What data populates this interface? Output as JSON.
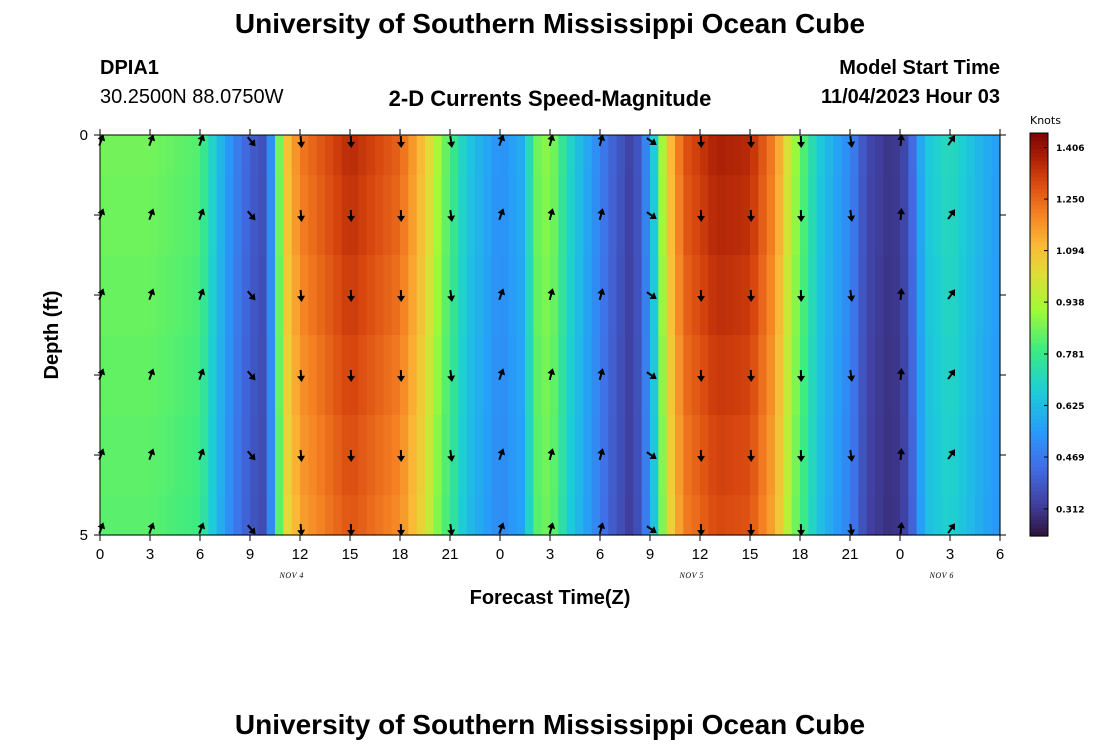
{
  "header": {
    "title": "University of Southern Mississippi Ocean Cube",
    "station_id": "DPIA1",
    "location": "30.2500N  88.0750W",
    "plot_title": "2-D Currents Speed-Magnitude",
    "model_start_label": "Model Start Time",
    "model_start_value": "11/04/2023 Hour 03",
    "bottom_title": "University of Southern Mississippi Ocean Cube"
  },
  "chart_data": {
    "type": "heatmap",
    "title": "2-D Currents Speed-Magnitude",
    "xlabel": "Forecast Time(Z)",
    "ylabel": "Depth (ft)",
    "x_hours": [
      0,
      3,
      6,
      9,
      12,
      15,
      18,
      21,
      24,
      27,
      30,
      33,
      36,
      39,
      42,
      45,
      48,
      51,
      54
    ],
    "x_tick_labels": [
      "0",
      "3",
      "6",
      "9",
      "12",
      "15",
      "18",
      "21",
      "0",
      "3",
      "6",
      "9",
      "12",
      "15",
      "18",
      "21",
      "0",
      "3",
      "6"
    ],
    "xlim": [
      0,
      54
    ],
    "day_labels": [
      {
        "text": "NOV 4",
        "hour": 11.5
      },
      {
        "text": "NOV 5",
        "hour": 35.5
      },
      {
        "text": "NOV 6",
        "hour": 50.5
      }
    ],
    "y_tick_labels": [
      {
        "value": 0,
        "text": "0"
      },
      {
        "value": 5,
        "text": "5"
      }
    ],
    "ylim": [
      0,
      5
    ],
    "depth_levels": [
      0,
      1,
      2,
      3,
      4,
      5
    ],
    "colorbar": {
      "unit": "Knots",
      "min": 0.23,
      "max": 1.45,
      "tick_values": [
        1.406,
        1.25,
        1.094,
        0.938,
        0.781,
        0.625,
        0.469,
        0.312
      ],
      "tick_labels": [
        "1.406",
        "1.250",
        "1.094",
        "0.938",
        "0.781",
        "0.625",
        "0.469",
        "0.312"
      ]
    },
    "speed_profile_by_hour": [
      [
        0,
        0.86
      ],
      [
        3,
        0.86
      ],
      [
        6,
        0.82
      ],
      [
        7,
        0.65
      ],
      [
        8,
        0.5
      ],
      [
        9,
        0.4
      ],
      [
        10,
        0.36
      ],
      [
        10.6,
        0.75
      ],
      [
        11,
        1.05
      ],
      [
        12,
        1.22
      ],
      [
        15,
        1.36
      ],
      [
        18,
        1.26
      ],
      [
        19.5,
        1.08
      ],
      [
        20.5,
        0.88
      ],
      [
        22,
        0.66
      ],
      [
        24,
        0.52
      ],
      [
        25.5,
        0.6
      ],
      [
        26,
        0.84
      ],
      [
        27,
        0.9
      ],
      [
        28,
        0.72
      ],
      [
        29.5,
        0.55
      ],
      [
        30.5,
        0.43
      ],
      [
        32,
        0.32
      ],
      [
        33,
        0.55
      ],
      [
        34,
        1.05
      ],
      [
        35,
        1.28
      ],
      [
        37,
        1.38
      ],
      [
        39,
        1.36
      ],
      [
        40.5,
        1.2
      ],
      [
        41.5,
        0.95
      ],
      [
        43,
        0.68
      ],
      [
        45,
        0.5
      ],
      [
        46,
        0.35
      ],
      [
        47.5,
        0.3
      ],
      [
        48.5,
        0.36
      ],
      [
        49.5,
        0.65
      ],
      [
        51,
        0.72
      ],
      [
        53,
        0.6
      ],
      [
        54,
        0.55
      ]
    ],
    "arrow_hours": [
      0,
      3,
      6,
      9,
      12,
      15,
      18,
      21,
      24,
      27,
      30,
      33,
      36,
      39,
      42,
      45,
      48,
      51
    ],
    "arrow_depths": [
      0,
      1,
      2,
      3,
      4,
      5
    ],
    "arrow_direction_deg_by_hour": [
      20,
      20,
      20,
      140,
      175,
      178,
      178,
      172,
      20,
      15,
      15,
      125,
      178,
      178,
      178,
      172,
      5,
      35
    ]
  }
}
